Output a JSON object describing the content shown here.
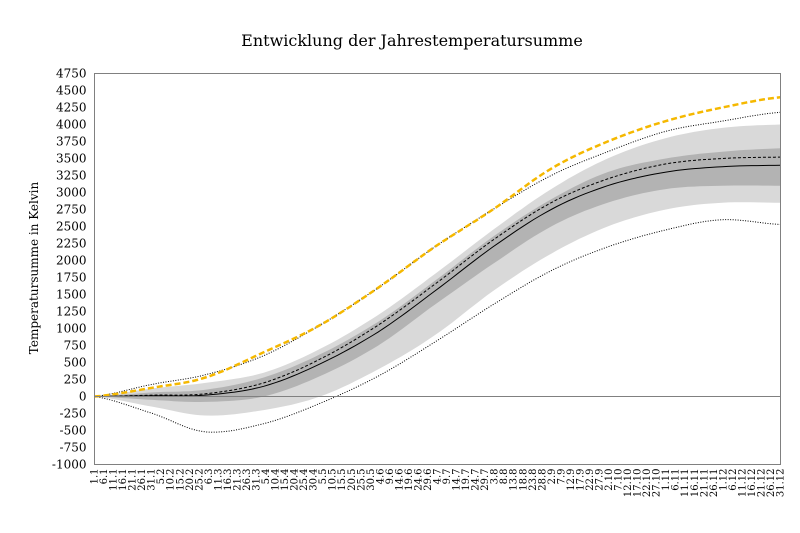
{
  "chart_data": {
    "type": "area",
    "title": "Entwicklung der Jahrestemperatursumme",
    "xlabel": "",
    "ylabel": "Temperatursumme  in Kelvin",
    "ylim": [
      -1000,
      4750
    ],
    "yticks": [
      -1000,
      -750,
      -500,
      -250,
      0,
      250,
      500,
      750,
      1000,
      1250,
      1500,
      1750,
      2000,
      2250,
      2500,
      2750,
      3000,
      3250,
      3500,
      3750,
      4000,
      4250,
      4500,
      4750
    ],
    "xlim": [
      0,
      365
    ],
    "xtick_labels": [
      "1.1",
      "6.1",
      "11.1",
      "16.1",
      "21.1",
      "26.1",
      "31.1",
      "5.2",
      "10.2",
      "15.2",
      "20.2",
      "25.2",
      "6.3",
      "11.3",
      "16.3",
      "21.3",
      "26.3",
      "31.3",
      "5.4",
      "10.4",
      "15.4",
      "20.4",
      "25.4",
      "30.4",
      "5.5",
      "10.5",
      "15.5",
      "20.5",
      "25.5",
      "30.5",
      "4.6",
      "9.6",
      "14.6",
      "19.6",
      "24.6",
      "29.6",
      "4.7",
      "9.7",
      "14.7",
      "19.7",
      "24.7",
      "29.7",
      "3.8",
      "8.8",
      "13.8",
      "18.8",
      "23.8",
      "28.8",
      "2.9",
      "7.9",
      "12.9",
      "17.9",
      "22.9",
      "27.9",
      "2.10",
      "7.10",
      "12.10",
      "17.10",
      "22.10",
      "27.10",
      "1.11",
      "6.11",
      "11.11",
      "16.11",
      "21.11",
      "26.11",
      "1.12",
      "6.12",
      "11.12",
      "16.12",
      "21.12",
      "26.12",
      "31.12"
    ],
    "x": [
      0,
      31,
      59,
      90,
      120,
      151,
      181,
      212,
      243,
      273,
      304,
      334,
      365
    ],
    "bands": [
      {
        "name": "outer-range",
        "color": "#d9d9d9",
        "upper": [
          0,
          120,
          200,
          350,
          700,
          1200,
          1800,
          2450,
          3050,
          3500,
          3800,
          3950,
          4000
        ],
        "lower": [
          0,
          -150,
          -280,
          -200,
          0,
          400,
          900,
          1550,
          2100,
          2500,
          2750,
          2850,
          2850
        ]
      },
      {
        "name": "inner-range",
        "color": "#b3b3b3",
        "upper": [
          0,
          60,
          100,
          280,
          620,
          1100,
          1700,
          2350,
          2900,
          3300,
          3500,
          3600,
          3650
        ],
        "lower": [
          0,
          -50,
          -80,
          0,
          300,
          750,
          1350,
          1950,
          2500,
          2850,
          3050,
          3100,
          3100
        ]
      }
    ],
    "series": [
      {
        "name": "maximum",
        "style": "dotted",
        "color": "#000000",
        "values": [
          0,
          180,
          320,
          600,
          1050,
          1600,
          2200,
          2750,
          3250,
          3600,
          3900,
          4050,
          4180
        ]
      },
      {
        "name": "minimum",
        "style": "dotted",
        "color": "#000000",
        "values": [
          0,
          -250,
          -520,
          -400,
          -100,
          300,
          800,
          1350,
          1850,
          2200,
          2450,
          2600,
          2530
        ]
      },
      {
        "name": "mean",
        "style": "dashed",
        "color": "#000000",
        "values": [
          0,
          20,
          40,
          200,
          550,
          1050,
          1650,
          2300,
          2850,
          3200,
          3420,
          3500,
          3520
        ]
      },
      {
        "name": "median",
        "style": "solid",
        "color": "#000000",
        "values": [
          0,
          10,
          20,
          150,
          480,
          950,
          1550,
          2200,
          2750,
          3100,
          3300,
          3380,
          3400
        ]
      },
      {
        "name": "current-year",
        "style": "dashed-bold",
        "color": "#f5b800",
        "values": [
          0,
          130,
          280,
          650,
          1050,
          1600,
          2200,
          2750,
          3350,
          3750,
          4050,
          4250,
          4400
        ]
      }
    ],
    "grid": false,
    "legend": "none"
  }
}
